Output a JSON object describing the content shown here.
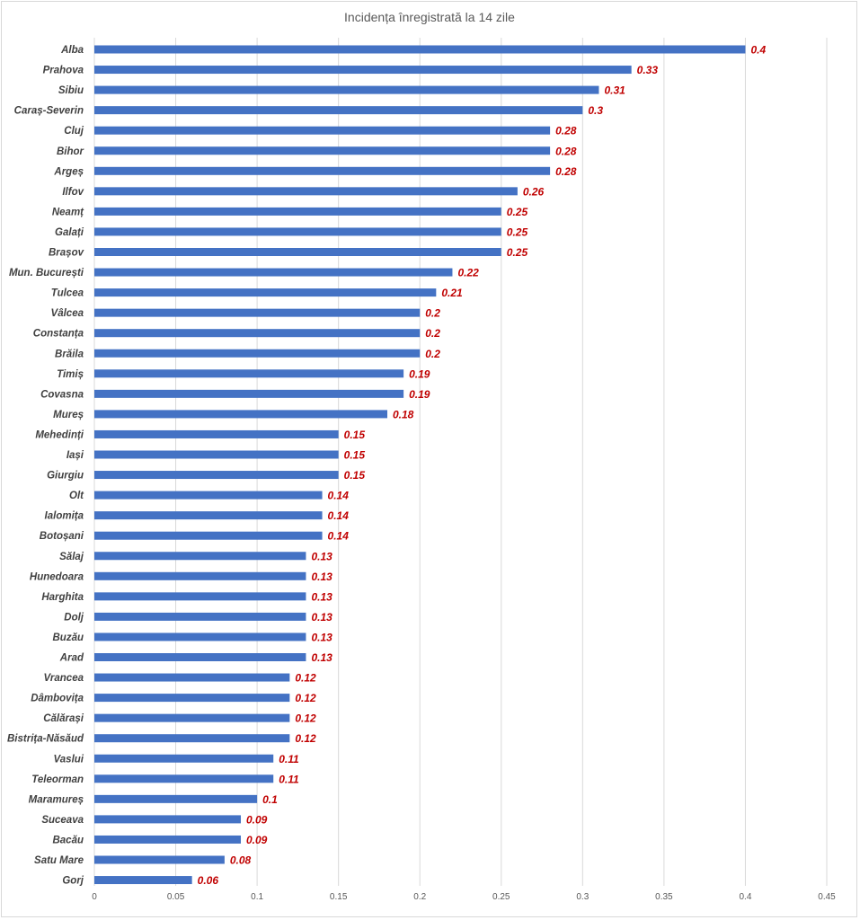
{
  "chart_data": {
    "type": "bar",
    "orientation": "horizontal",
    "title": "Incidența înregistrată la 14 zile",
    "xlabel": "",
    "ylabel": "",
    "xlim": [
      0,
      0.45
    ],
    "ticks": [
      "0",
      "0.05",
      "0.1",
      "0.15",
      "0.2",
      "0.25",
      "0.3",
      "0.35",
      "0.4",
      "0.45"
    ],
    "tick_values": [
      0,
      0.05,
      0.1,
      0.15,
      0.2,
      0.25,
      0.3,
      0.35,
      0.4,
      0.45
    ],
    "grid": "vertical",
    "bar_color": "#4472c4",
    "label_color": "#c00000",
    "categories": [
      "Alba",
      "Prahova",
      "Sibiu",
      "Caraș-Severin",
      "Cluj",
      "Bihor",
      "Argeș",
      "Ilfov",
      "Neamț",
      "Galați",
      "Brașov",
      "Mun. București",
      "Tulcea",
      "Vâlcea",
      "Constanța",
      "Brăila",
      "Timiș",
      "Covasna",
      "Mureș",
      "Mehedinți",
      "Iași",
      "Giurgiu",
      "Olt",
      "Ialomița",
      "Botoșani",
      "Sălaj",
      "Hunedoara",
      "Harghita",
      "Dolj",
      "Buzău",
      "Arad",
      "Vrancea",
      "Dâmbovița",
      "Călărași",
      "Bistrița-Năsăud",
      "Vaslui",
      "Teleorman",
      "Maramureș",
      "Suceava",
      "Bacău",
      "Satu Mare",
      "Gorj"
    ],
    "values": [
      0.4,
      0.33,
      0.31,
      0.3,
      0.28,
      0.28,
      0.28,
      0.26,
      0.25,
      0.25,
      0.25,
      0.22,
      0.21,
      0.2,
      0.2,
      0.2,
      0.19,
      0.19,
      0.18,
      0.15,
      0.15,
      0.15,
      0.14,
      0.14,
      0.14,
      0.13,
      0.13,
      0.13,
      0.13,
      0.13,
      0.13,
      0.12,
      0.12,
      0.12,
      0.12,
      0.11,
      0.11,
      0.1,
      0.09,
      0.09,
      0.08,
      0.06
    ],
    "value_labels": [
      "0.4",
      "0.33",
      "0.31",
      "0.3",
      "0.28",
      "0.28",
      "0.28",
      "0.26",
      "0.25",
      "0.25",
      "0.25",
      "0.22",
      "0.21",
      "0.2",
      "0.2",
      "0.2",
      "0.19",
      "0.19",
      "0.18",
      "0.15",
      "0.15",
      "0.15",
      "0.14",
      "0.14",
      "0.14",
      "0.13",
      "0.13",
      "0.13",
      "0.13",
      "0.13",
      "0.13",
      "0.12",
      "0.12",
      "0.12",
      "0.12",
      "0.11",
      "0.11",
      "0.1",
      "0.09",
      "0.09",
      "0.08",
      "0.06"
    ]
  }
}
